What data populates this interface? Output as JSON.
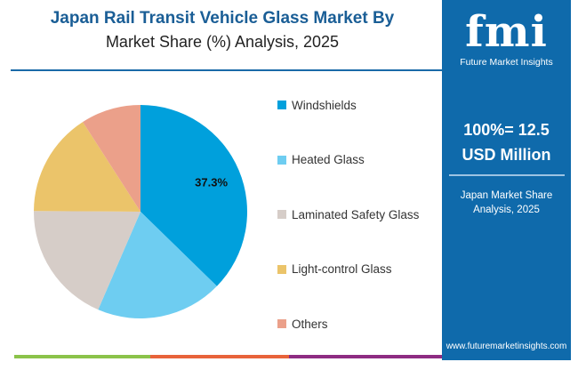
{
  "title": {
    "line1": "Japan Rail Transit Vehicle Glass Market By",
    "line2": "Market Share (%) Analysis, 2025"
  },
  "chart_data": {
    "type": "pie",
    "title": "Japan Rail Transit Vehicle Glass Market By Market Share (%) Analysis, 2025",
    "categories": [
      "Windshields",
      "Heated Glass",
      "Laminated Safety Glass",
      "Light-control Glass",
      "Others"
    ],
    "values": [
      37.3,
      19.2,
      18.6,
      15.8,
      9.1
    ],
    "colors": [
      "#00a0dc",
      "#6ecdf1",
      "#d6cdc8",
      "#ebc46a",
      "#eba08a"
    ],
    "data_labels": [
      "37.3%",
      "",
      "",
      "",
      ""
    ],
    "start_angle_deg": 0,
    "direction": "clockwise",
    "legend_position": "right"
  },
  "panel": {
    "logo": "fmi",
    "logo_sub": "Future Market Insights",
    "total_line1": "100%= 12.5",
    "total_line2": "USD Million",
    "subtitle_line1": "Japan Market Share",
    "subtitle_line2": "Analysis, 2025",
    "url": "www.futuremarketinsights.com"
  },
  "strip_colors": [
    "#8bc34a",
    "#e8633a",
    "#8e2c82"
  ]
}
